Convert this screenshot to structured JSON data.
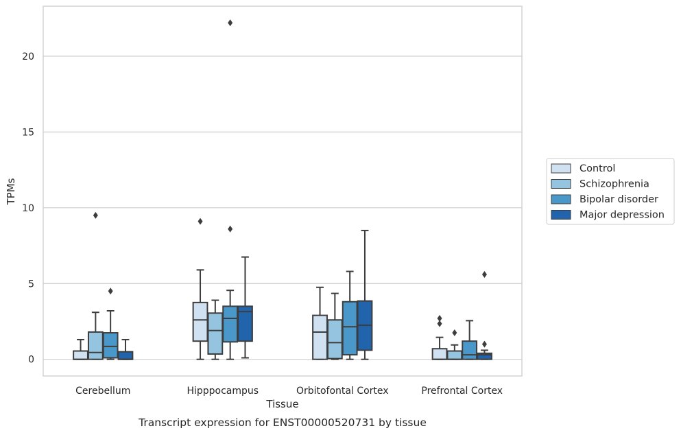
{
  "chart_data": {
    "type": "box",
    "title": "Transcript expression for ENST00000520731 by tissue",
    "xlabel": "Tissue",
    "ylabel": "TPMs",
    "ylim": [
      -1.1,
      23.3
    ],
    "yticks": [
      0,
      5,
      10,
      15,
      20
    ],
    "grid": "horizontal",
    "legend_position": "right",
    "categories": [
      "Cerebellum",
      "Hipppocampus",
      "Orbitofontal Cortex",
      "Prefrontal Cortex"
    ],
    "series": [
      {
        "name": "Control",
        "color": "#d0e1f2",
        "boxes": [
          {
            "whislo": 0,
            "q1": 0,
            "med": 0,
            "q3": 0.55,
            "whishi": 1.3,
            "fliers": []
          },
          {
            "whislo": 0,
            "q1": 1.2,
            "med": 2.6,
            "q3": 3.75,
            "whishi": 5.9,
            "fliers": [
              9.1
            ]
          },
          {
            "whislo": 0,
            "q1": 0,
            "med": 1.8,
            "q3": 2.9,
            "whishi": 4.75,
            "fliers": []
          },
          {
            "whislo": 0,
            "q1": 0,
            "med": 0,
            "q3": 0.7,
            "whishi": 1.45,
            "fliers": [
              2.35,
              2.7
            ]
          }
        ]
      },
      {
        "name": "Schizophrenia",
        "color": "#94c4df",
        "boxes": [
          {
            "whislo": 0,
            "q1": 0,
            "med": 0.45,
            "q3": 1.8,
            "whishi": 3.1,
            "fliers": [
              9.5
            ]
          },
          {
            "whislo": 0,
            "q1": 0.35,
            "med": 1.9,
            "q3": 3.05,
            "whishi": 3.9,
            "fliers": []
          },
          {
            "whislo": 0,
            "q1": 0.05,
            "med": 1.1,
            "q3": 2.6,
            "whishi": 4.35,
            "fliers": []
          },
          {
            "whislo": 0,
            "q1": 0,
            "med": 0,
            "q3": 0.55,
            "whishi": 0.95,
            "fliers": [
              1.75
            ]
          }
        ]
      },
      {
        "name": "Bipolar disorder",
        "color": "#4a98c9",
        "boxes": [
          {
            "whislo": 0,
            "q1": 0.1,
            "med": 0.85,
            "q3": 1.75,
            "whishi": 3.2,
            "fliers": [
              4.5
            ]
          },
          {
            "whislo": 0,
            "q1": 1.15,
            "med": 2.7,
            "q3": 3.5,
            "whishi": 4.55,
            "fliers": [
              8.6,
              22.2
            ]
          },
          {
            "whislo": 0,
            "q1": 0.3,
            "med": 2.15,
            "q3": 3.8,
            "whishi": 5.8,
            "fliers": []
          },
          {
            "whislo": 0,
            "q1": 0,
            "med": 0.3,
            "q3": 1.2,
            "whishi": 2.55,
            "fliers": []
          }
        ]
      },
      {
        "name": "Major depression",
        "color": "#2164ab",
        "boxes": [
          {
            "whislo": 0,
            "q1": 0,
            "med": 0,
            "q3": 0.5,
            "whishi": 1.3,
            "fliers": []
          },
          {
            "whislo": 0.1,
            "q1": 1.2,
            "med": 3.15,
            "q3": 3.5,
            "whishi": 6.75,
            "fliers": []
          },
          {
            "whislo": 0,
            "q1": 0.6,
            "med": 2.25,
            "q3": 3.85,
            "whishi": 8.5,
            "fliers": []
          },
          {
            "whislo": 0,
            "q1": 0,
            "med": 0.3,
            "q3": 0.4,
            "whishi": 0.6,
            "fliers": [
              1.0,
              5.6
            ]
          }
        ]
      }
    ]
  }
}
